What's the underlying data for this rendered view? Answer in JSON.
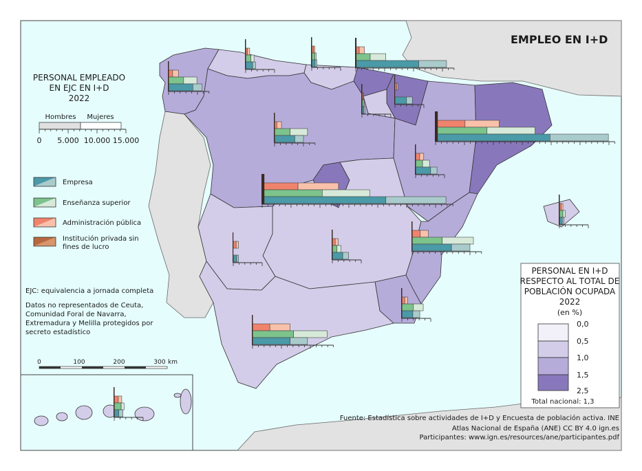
{
  "title": "EMPLEO EN I+D",
  "bar_legend": {
    "title_lines": [
      "PERSONAL EMPLEADO",
      "EN EJC EN I+D",
      "2022"
    ],
    "men_label": "Hombres",
    "women_label": "Mujeres",
    "scale_labels": [
      "0",
      "5.000",
      "10.000",
      "15.000"
    ],
    "units_per_tick": 1000,
    "categories": [
      {
        "label": "Empresa",
        "men_color": "#4a9aa8",
        "women_color": "#aacbcc"
      },
      {
        "label": "Enseñanza superior",
        "men_color": "#7cc38c",
        "women_color": "#d7eada"
      },
      {
        "label": "Administración pública",
        "men_color": "#f0836c",
        "women_color": "#f9c1aa"
      },
      {
        "label_lines": [
          "Institución privada sin",
          "fines de lucro"
        ],
        "men_color": "#b8683e",
        "women_color": "#d8946a"
      }
    ]
  },
  "notes": {
    "ejc": "EJC: equivalencia a jornada completa",
    "missing_lines": [
      "Datos no representados de Ceuta,",
      "Comunidad Foral de Navarra,",
      "Extremadura y Melilla protegidos por",
      "secreto estadístico"
    ]
  },
  "scale_bar": {
    "labels": [
      "0",
      "100",
      "200",
      "300"
    ],
    "unit": "km"
  },
  "choropleth_legend": {
    "title_lines": [
      "PERSONAL EN I+D",
      "RESPECTO AL TOTAL DE",
      "POBLACIÓN OCUPADA",
      "2022",
      "(en %)"
    ],
    "breaks": [
      "0,0",
      "0,5",
      "1,0",
      "1,5",
      "2,5"
    ],
    "colors": [
      "#f2f0f8",
      "#d3cde9",
      "#b6acda",
      "#8878bb"
    ],
    "total": "Total nacional: 1,3"
  },
  "credits": {
    "source": "Fuente: Estadística sobre actividades de I+D y Encuesta de población activa. INE",
    "atlas": "Atlas Nacional de España (ANE) CC BY 4.0 ign.es",
    "participants": "Participantes: www.ign.es/resources/ane/participantes.pdf"
  },
  "colors": {
    "sea": "#e6fdfd",
    "foreign_land": "#e2e2e2"
  },
  "choropleth_class": {
    "galicia": 3,
    "asturias": 2,
    "cantabria": 2,
    "pais_vasco": 4,
    "navarra": 4,
    "rioja": 2,
    "castilla_leon": 3,
    "aragon": 3,
    "cataluna": 4,
    "madrid": 4,
    "castilla_la_mancha": 2,
    "extremadura": 2,
    "valencia": 3,
    "murcia": 3,
    "andalucia": 2,
    "baleares": 2,
    "canarias": 2
  },
  "employment": {
    "galicia": {
      "empresa": [
        4200,
        1600
      ],
      "ensenanza": [
        2600,
        2300
      ],
      "administracion": [
        700,
        1000
      ],
      "ipsfl": [
        100,
        50
      ]
    },
    "asturias": {
      "empresa": [
        1200,
        500
      ],
      "ensenanza": [
        900,
        550
      ],
      "administracion": [
        300,
        400
      ],
      "ipsfl": [
        50,
        30
      ]
    },
    "cantabria": {
      "empresa": [
        600,
        300
      ],
      "ensenanza": [
        550,
        250
      ],
      "administracion": [
        300,
        250
      ],
      "ipsfl": [
        30,
        20
      ]
    },
    "pais_vasco": {
      "empresa": [
        10900,
        4800
      ],
      "ensenanza": [
        2500,
        2700
      ],
      "administracion": [
        600,
        900
      ],
      "ipsfl": [
        150,
        100
      ]
    },
    "navarra": {
      "empresa": [
        2000,
        1000
      ],
      "administracion": [
        300,
        200
      ]
    },
    "rioja": {
      "empresa": [
        300,
        200
      ],
      "ensenanza": [
        250,
        150
      ],
      "administracion": [
        200,
        100
      ],
      "ipsfl": [
        50,
        30
      ]
    },
    "castilla_leon": {
      "empresa": [
        3500,
        1500
      ],
      "ensenanza": [
        2700,
        3000
      ],
      "administracion": [
        400,
        800
      ],
      "ipsfl": [
        50,
        30
      ]
    },
    "aragon": {
      "empresa": [
        2600,
        1100
      ],
      "ensenanza": [
        1200,
        1200
      ],
      "administracion": [
        700,
        700
      ],
      "ipsfl": [
        50,
        30
      ]
    },
    "cataluna": {
      "empresa": [
        19800,
        10100
      ],
      "ensenanza": [
        8900,
        8300
      ],
      "administracion": [
        5100,
        5900
      ],
      "ipsfl": [
        300,
        200
      ]
    },
    "madrid": {
      "empresa": [
        21400,
        10400
      ],
      "ensenanza": [
        10400,
        8200
      ],
      "administracion": [
        6200,
        7000
      ],
      "ipsfl": [
        300,
        200
      ]
    },
    "castilla_la_mancha": {
      "empresa": [
        1800,
        1000
      ],
      "ensenanza": [
        800,
        700
      ],
      "administracion": [
        500,
        500
      ],
      "ipsfl": [
        30,
        20
      ]
    },
    "extremadura": {
      "empresa": [
        600,
        300
      ],
      "administracion": [
        500,
        400
      ]
    },
    "valencia": {
      "empresa": [
        6800,
        3200
      ],
      "ensenanza": [
        5200,
        5400
      ],
      "administracion": [
        1400,
        1400
      ],
      "ipsfl": [
        100,
        50
      ]
    },
    "murcia": {
      "empresa": [
        1900,
        1200
      ],
      "ensenanza": [
        2000,
        1700
      ],
      "administracion": [
        500,
        500
      ],
      "ipsfl": [
        30,
        20
      ]
    },
    "andalucia": {
      "empresa": [
        6500,
        3000
      ],
      "ensenanza": [
        7100,
        5800
      ],
      "administracion": [
        3000,
        3500
      ],
      "ipsfl": [
        100,
        50
      ]
    },
    "baleares": {
      "empresa": [
        500,
        300
      ],
      "ensenanza": [
        600,
        400
      ],
      "administracion": [
        300,
        300
      ],
      "ipsfl": [
        30,
        20
      ]
    },
    "canarias": {
      "empresa": [
        800,
        700
      ],
      "ensenanza": [
        1200,
        500
      ],
      "administracion": [
        700,
        600
      ],
      "ipsfl": [
        30,
        20
      ]
    }
  }
}
